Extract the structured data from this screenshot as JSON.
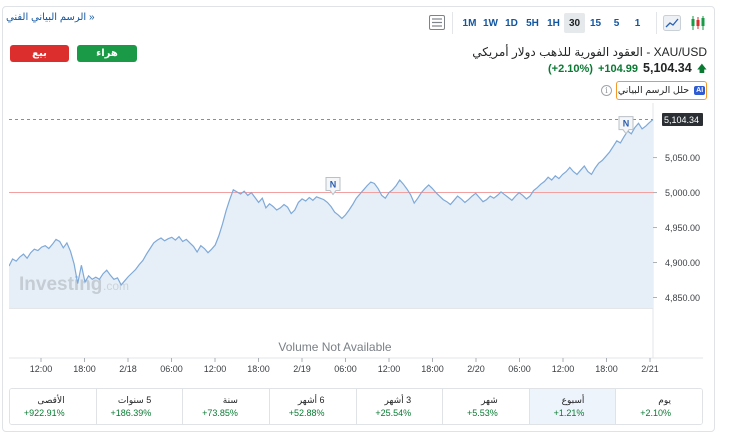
{
  "toolbar": {
    "tech_chart_link": "الرسم البياني الفني »",
    "ranges": [
      "1M",
      "1W",
      "1D",
      "5H",
      "1H",
      "30",
      "15",
      "5",
      "1"
    ],
    "active_range": "30"
  },
  "actions": {
    "sell_label": "بيع",
    "buy_label": "هراء"
  },
  "instrument": {
    "title": "XAU/USD - العقود الفورية للذهب دولار أمريكي",
    "price": "5,104.34",
    "change": "+104.99",
    "change_pct": "(+2.10%)",
    "up_color": "#0a7a33"
  },
  "analyze": {
    "badge": "AI",
    "label": "حلل الرسم البياني"
  },
  "chart": {
    "current_price_label": "5,104.34",
    "watermark": "Investing",
    "watermark_suffix": ".com",
    "volume_text": "Volume Not Available",
    "news_marker": "N"
  },
  "chart_data": {
    "type": "area",
    "y_ticks": [
      "5,050.00",
      "5,000.00",
      "4,950.00",
      "4,900.00",
      "4,850.00"
    ],
    "y_tick_values": [
      5050,
      5000,
      4950,
      4900,
      4850
    ],
    "ylim": [
      4835,
      5128
    ],
    "x_ticks": [
      "12:00",
      "18:00",
      "2/18",
      "06:00",
      "12:00",
      "18:00",
      "2/19",
      "06:00",
      "12:00",
      "18:00",
      "2/20",
      "06:00",
      "12:00",
      "18:00",
      "2/21"
    ],
    "reference_line": 5000,
    "last_value": 5104.34,
    "values": [
      4895,
      4905,
      4902,
      4908,
      4912,
      4906,
      4914,
      4919,
      4917,
      4922,
      4924,
      4920,
      4926,
      4933,
      4930,
      4921,
      4928,
      4916,
      4898,
      4870,
      4896,
      4872,
      4881,
      4876,
      4879,
      4876,
      4884,
      4889,
      4882,
      4876,
      4878,
      4868,
      4874,
      4880,
      4885,
      4890,
      4897,
      4903,
      4912,
      4920,
      4928,
      4932,
      4935,
      4931,
      4934,
      4936,
      4932,
      4937,
      4930,
      4933,
      4928,
      4923,
      4915,
      4924,
      4920,
      4914,
      4919,
      4925,
      4938,
      4955,
      4974,
      4990,
      5004,
      5001,
      4998,
      5002,
      4996,
      5000,
      4993,
      4986,
      4992,
      4978,
      4984,
      4980,
      4975,
      4978,
      4983,
      4979,
      4970,
      4975,
      4986,
      4991,
      4988,
      4993,
      4989,
      4994,
      4992,
      4990,
      4986,
      4980,
      4972,
      4968,
      4963,
      4968,
      4975,
      4983,
      4992,
      4998,
      5004,
      5010,
      5015,
      5013,
      5006,
      4996,
      4992,
      5000,
      5004,
      5010,
      5018,
      5012,
      5005,
      4997,
      4985,
      4992,
      5000,
      5006,
      5011,
      5006,
      5000,
      4995,
      4990,
      4987,
      4983,
      4989,
      4995,
      4991,
      4986,
      4990,
      4995,
      4999,
      4993,
      4987,
      4990,
      4995,
      4992,
      4996,
      5001,
      4997,
      4993,
      4989,
      4995,
      5000,
      4996,
      4991,
      4995,
      5003,
      5007,
      5012,
      5016,
      5022,
      5018,
      5024,
      5020,
      5026,
      5030,
      5036,
      5030,
      5026,
      5032,
      5038,
      5030,
      5026,
      5035,
      5042,
      5046,
      5052,
      5058,
      5066,
      5074,
      5071,
      5080,
      5088,
      5084,
      5093,
      5099,
      5091,
      5095,
      5100,
      5104.34
    ]
  },
  "performance": [
    {
      "label": "الأقصى",
      "value": "+922.91%"
    },
    {
      "label": "5 سنوات",
      "value": "+186.39%"
    },
    {
      "label": "سنة",
      "value": "+73.85%"
    },
    {
      "label": "6 أشهر",
      "value": "+52.88%"
    },
    {
      "label": "3 أشهر",
      "value": "+25.54%"
    },
    {
      "label": "شهر",
      "value": "+5.53%"
    },
    {
      "label": "أسبوع",
      "value": "+1.21%",
      "active": true
    },
    {
      "label": "يوم",
      "value": "+2.10%"
    }
  ]
}
